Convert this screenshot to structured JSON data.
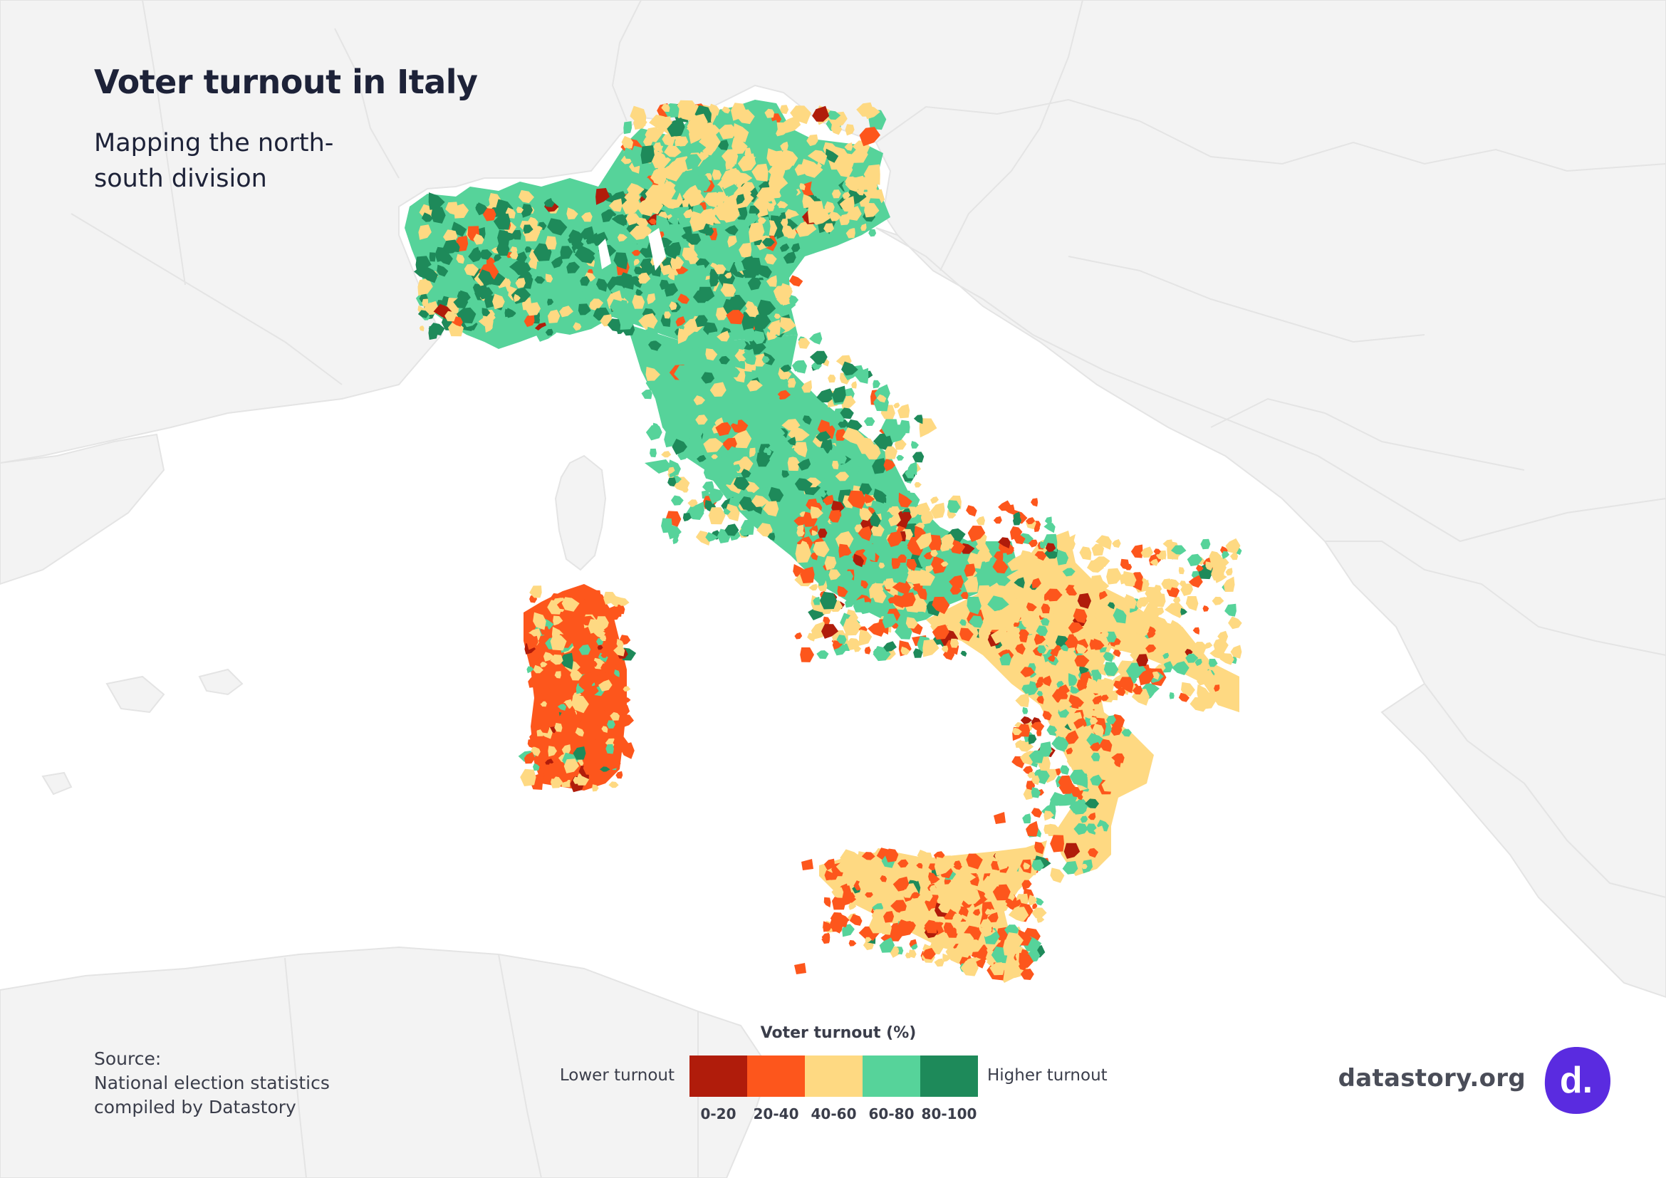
{
  "header": {
    "title": "Voter turnout in Italy",
    "subtitle": "Mapping the north-south division"
  },
  "source": {
    "line1": "Source:",
    "line2": "National election statistics",
    "line3": "compiled by Datastory"
  },
  "legend": {
    "title": "Voter turnout (%)",
    "low_label": "Lower turnout",
    "high_label": "Higher turnout",
    "bins": [
      {
        "label": "0-20",
        "color": "#b01c0b"
      },
      {
        "label": "20-40",
        "color": "#fd561c"
      },
      {
        "label": "40-60",
        "color": "#fed982"
      },
      {
        "label": "60-80",
        "color": "#56d39a"
      },
      {
        "label": "80-100",
        "color": "#1e8a5a"
      }
    ]
  },
  "brand": {
    "text": "datastory.org",
    "logo_letter": "d.",
    "logo_color": "#5a2be0"
  },
  "map": {
    "background_land": "#f3f3f3",
    "sea": "#ffffff",
    "borders": "#e2e2e2"
  }
}
